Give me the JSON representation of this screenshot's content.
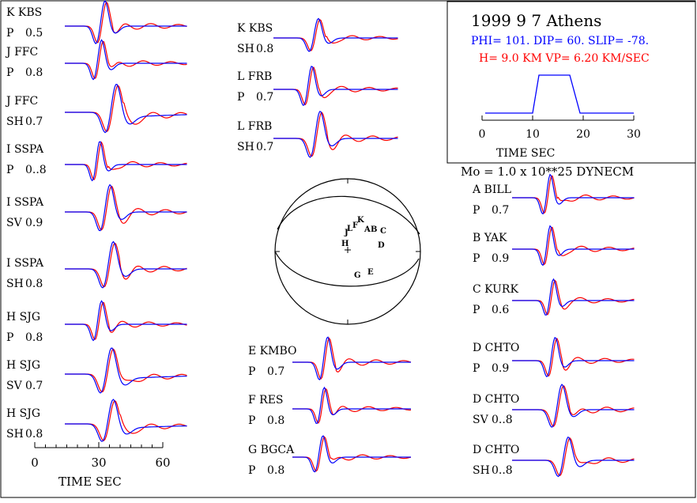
{
  "event": {
    "title": "1999  9 7 Athens",
    "mechanism": "PHI= 101. DIP= 60. SLIP= -78.",
    "depth_velocity": "H=  9.0 KM  VP= 6.20 KM/SEC",
    "moment": "Mo =  1.0 x 10**25 DYNECM"
  },
  "stf_axis": {
    "ticks": [
      "0",
      "10",
      "20",
      "30"
    ],
    "label": "TIME  SEC"
  },
  "trace_axis": {
    "ticks": [
      "0",
      "30",
      "60"
    ],
    "label": "TIME  SEC"
  },
  "traces": [
    {
      "name": "K KBS",
      "comp": "P",
      "amp": "0.5"
    },
    {
      "name": "J FFC",
      "comp": "P",
      "amp": "0.8"
    },
    {
      "name": "J FFC",
      "comp": "SH",
      "amp": "0.7"
    },
    {
      "name": "I SSPA",
      "comp": "P",
      "amp": "0..8"
    },
    {
      "name": "I SSPA",
      "comp": "SV",
      "amp": "0.9"
    },
    {
      "name": "I SSPA",
      "comp": "SH",
      "amp": "0.8"
    },
    {
      "name": "H SJG",
      "comp": "P",
      "amp": "0.8"
    },
    {
      "name": "H SJG",
      "comp": "SV",
      "amp": "0.7"
    },
    {
      "name": "H SJG",
      "comp": "SH",
      "amp": "0.8"
    },
    {
      "name": "K KBS",
      "comp": "SH",
      "amp": "0.8"
    },
    {
      "name": "L FRB",
      "comp": "P",
      "amp": "0.7"
    },
    {
      "name": "L FRB",
      "comp": "SH",
      "amp": "0.7"
    },
    {
      "name": "E KMBO",
      "comp": "P",
      "amp": "0.7"
    },
    {
      "name": "F RES",
      "comp": "P",
      "amp": "0.8"
    },
    {
      "name": "G BGCA",
      "comp": "P",
      "amp": "0.8"
    },
    {
      "name": "A BILL",
      "comp": "P",
      "amp": "0.7"
    },
    {
      "name": "B YAK",
      "comp": "P",
      "amp": "0.9"
    },
    {
      "name": "C KURK",
      "comp": "P",
      "amp": "0.6"
    },
    {
      "name": "D CHTO",
      "comp": "P",
      "amp": "0.9"
    },
    {
      "name": "D CHTO",
      "comp": "SV",
      "amp": "0..8"
    },
    {
      "name": "D CHTO",
      "comp": "SH",
      "amp": "0..8"
    }
  ],
  "stations": [
    "K",
    "L",
    "J",
    "F",
    "A",
    "B",
    "C",
    "H",
    "D",
    "G",
    "E"
  ],
  "colors": {
    "synthetic": "#0000ff",
    "observed": "#ff0000",
    "frame": "#000000"
  }
}
